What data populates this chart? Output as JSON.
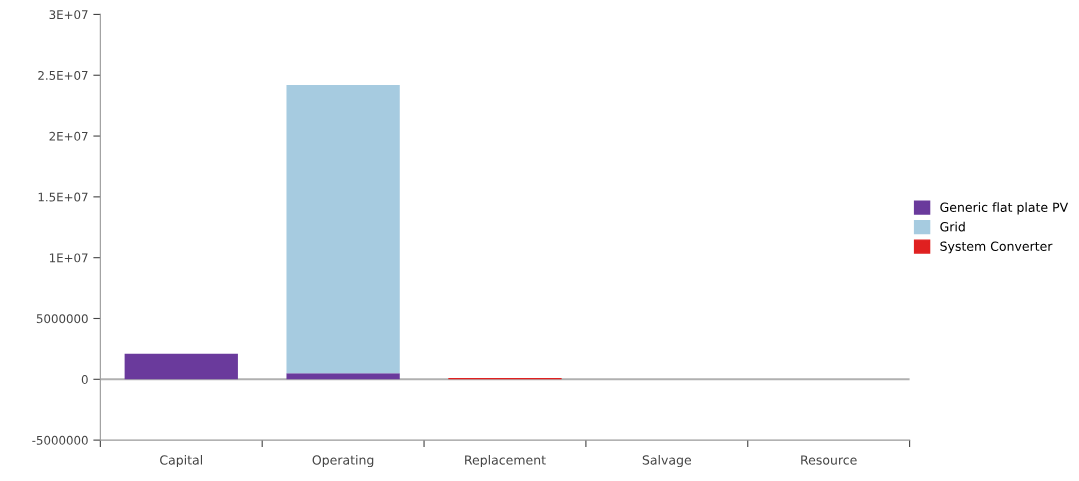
{
  "chart_data": {
    "type": "bar",
    "stacked": true,
    "categories": [
      "Capital",
      "Operating",
      "Replacement",
      "Salvage",
      "Resource"
    ],
    "series": [
      {
        "name": "Generic flat plate PV",
        "color": "#6a3a9c",
        "values": [
          2100000,
          500000,
          0,
          0,
          0
        ]
      },
      {
        "name": "Grid",
        "color": "#a6cbe0",
        "values": [
          0,
          23700000,
          0,
          0,
          0
        ]
      },
      {
        "name": "System Converter",
        "color": "#e02020",
        "values": [
          0,
          0,
          100000,
          0,
          0
        ]
      }
    ],
    "ylim": [
      -5000000,
      30000000
    ],
    "yticks": [
      {
        "value": -5000000,
        "label": "-5000000"
      },
      {
        "value": 0,
        "label": "0"
      },
      {
        "value": 5000000,
        "label": "5000000"
      },
      {
        "value": 10000000,
        "label": "1E+07"
      },
      {
        "value": 15000000,
        "label": "1.5E+07"
      },
      {
        "value": 20000000,
        "label": "2E+07"
      },
      {
        "value": 25000000,
        "label": "2.5E+07"
      },
      {
        "value": 30000000,
        "label": "3E+07"
      }
    ],
    "ref_lines": [
      {
        "axis": "y",
        "value": 0,
        "color": "#b0b0b0"
      }
    ],
    "legend": "right",
    "grid": false
  }
}
